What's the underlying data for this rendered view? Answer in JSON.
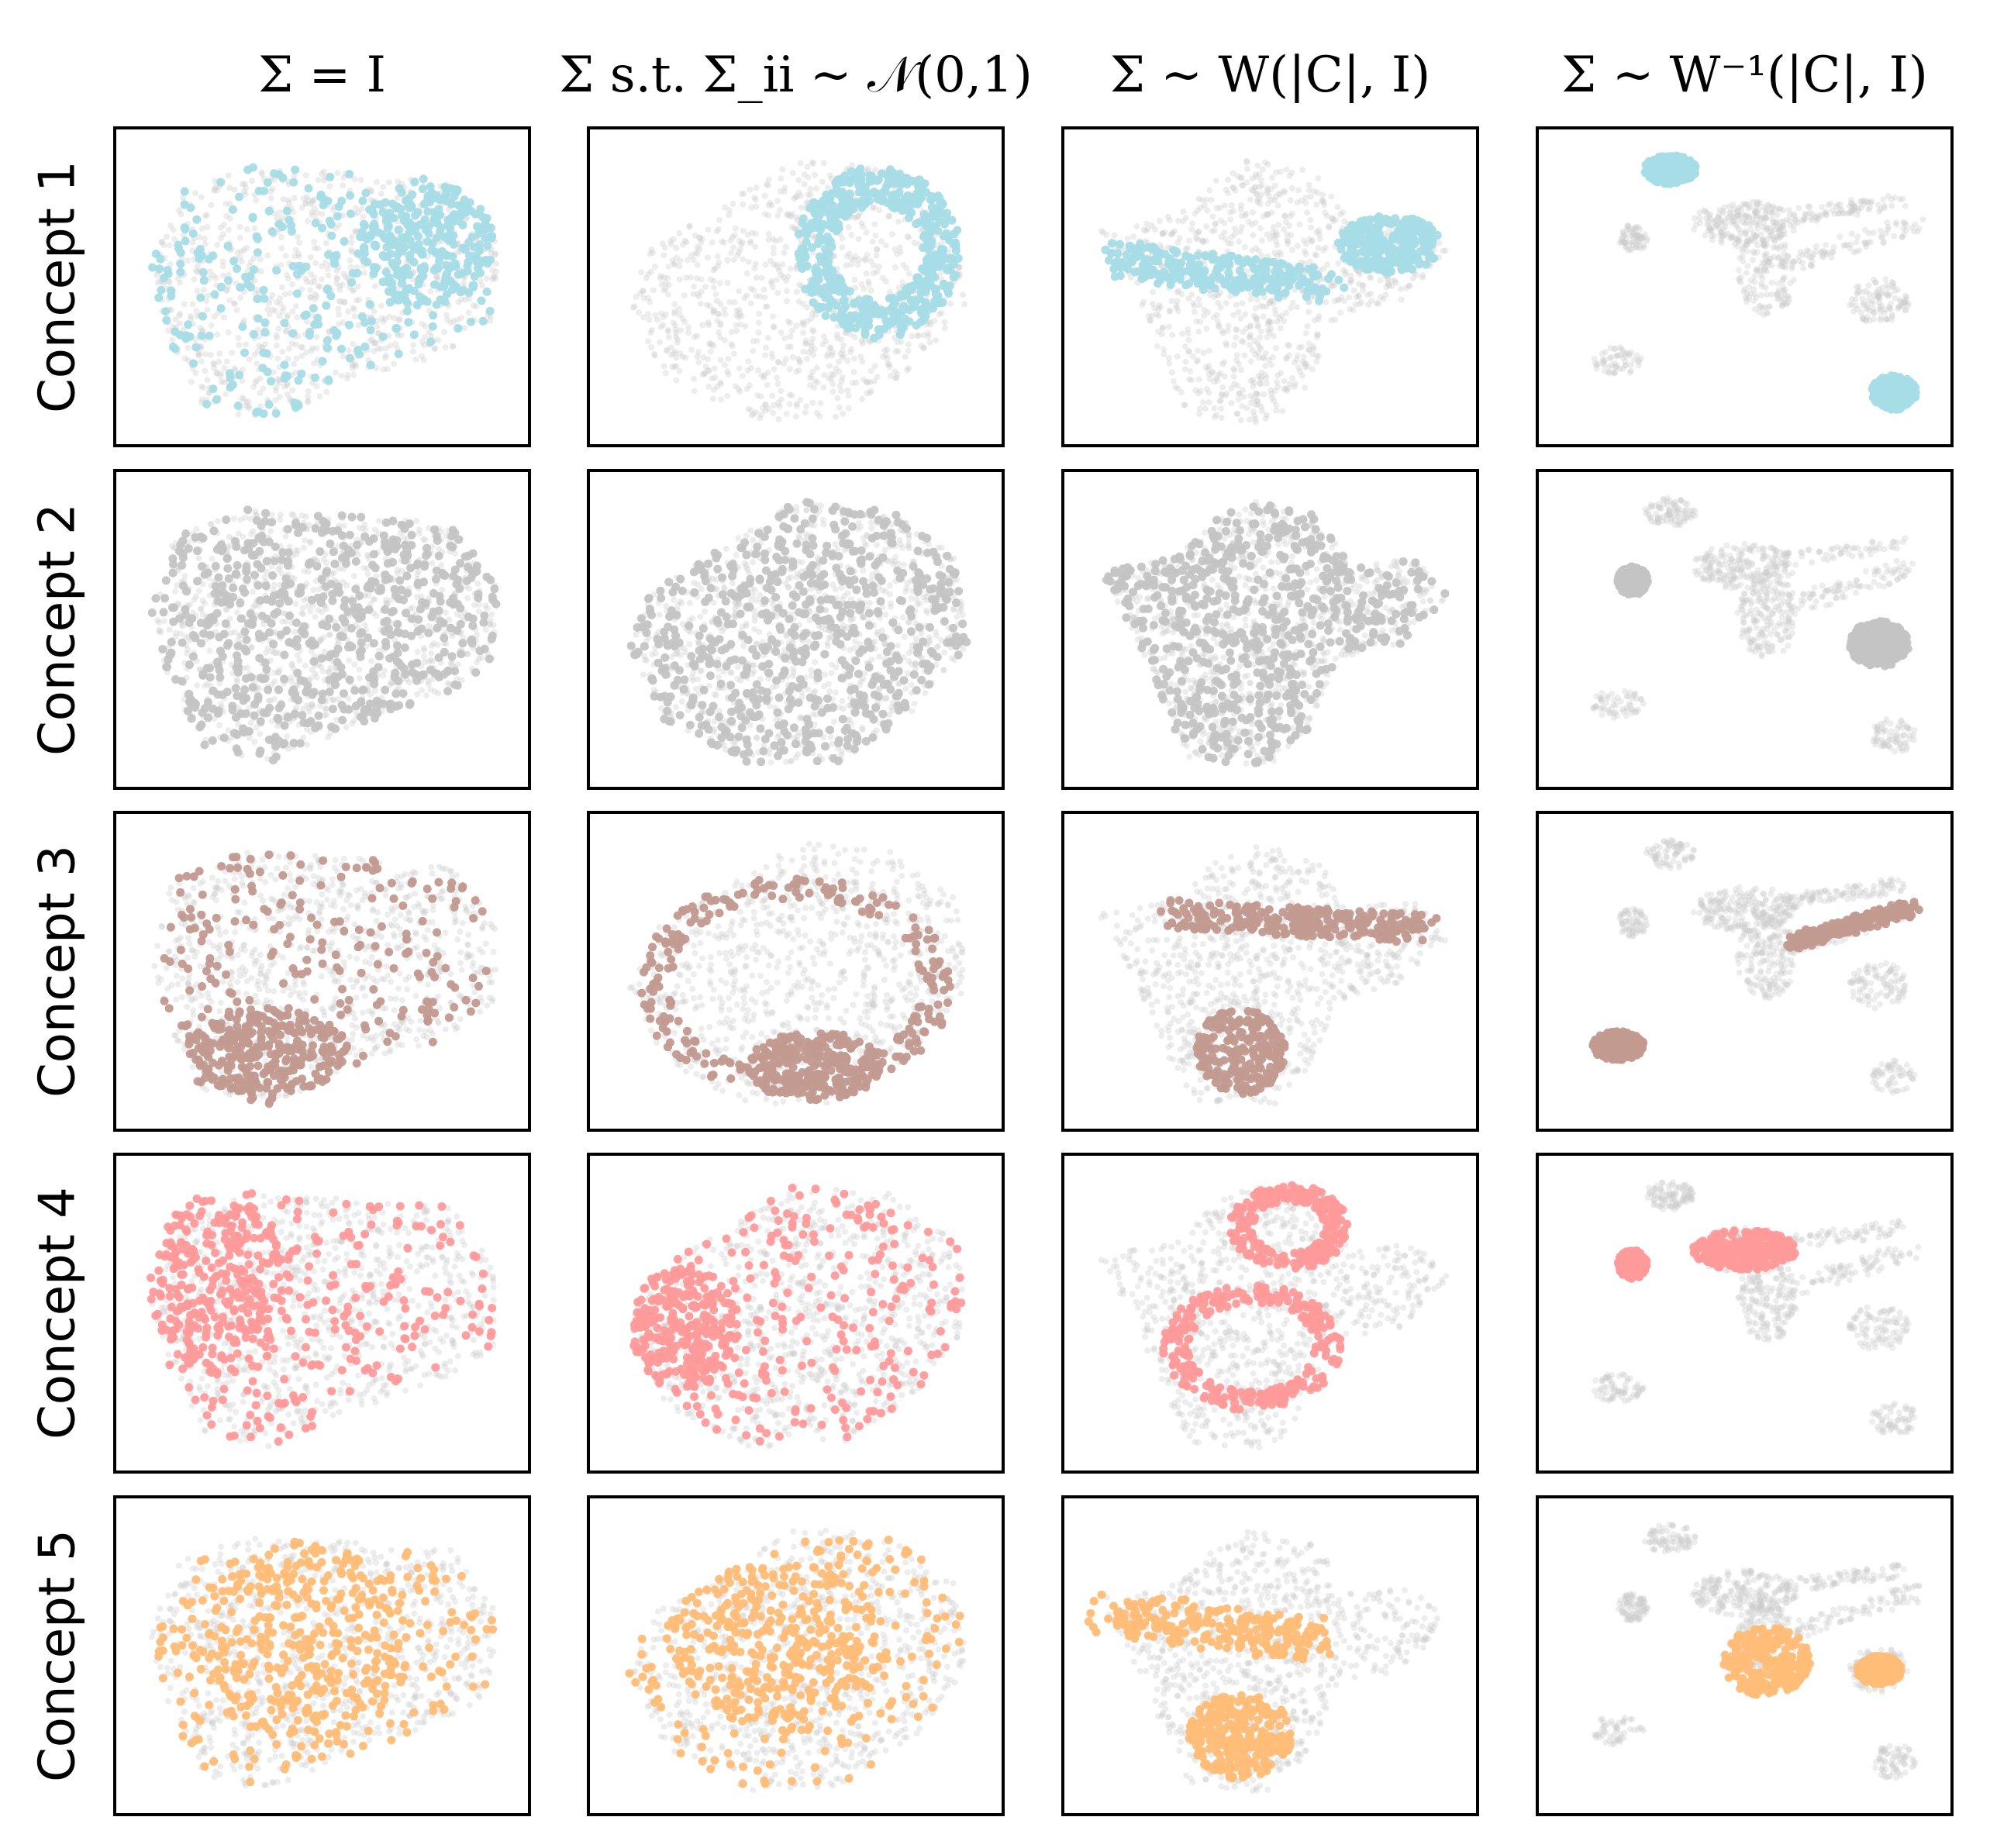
{
  "chart_data": {
    "type": "scatter",
    "grid": false,
    "axes": "none",
    "background_color": "#cccccc",
    "column_titles": [
      "Σ = I",
      "Σ s.t. Σ_ii ~ 𝒩(0,1)",
      "Σ ~ W(|C|, I)",
      "Σ ~ W⁻¹(|C|, I)"
    ],
    "row_labels": [
      "Concept 1",
      "Concept 2",
      "Concept 3",
      "Concept 4",
      "Concept 5"
    ],
    "concept_colors": [
      "#a6dce6",
      "#c4c4c4",
      "#c29a90",
      "#ff9a9a",
      "#ffbd78"
    ]
  }
}
